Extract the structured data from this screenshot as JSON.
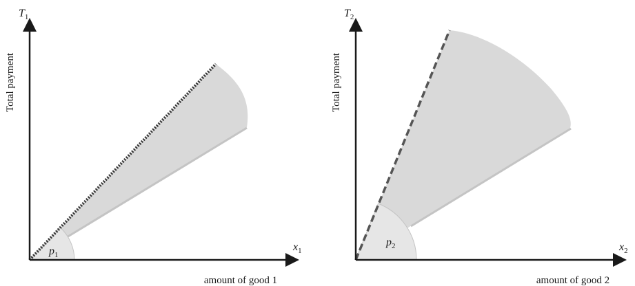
{
  "panels": [
    {
      "y_axis": {
        "symbol": "T",
        "subscript": "1",
        "title": "Total payment"
      },
      "x_axis": {
        "symbol": "x",
        "subscript": "1",
        "title": "amount of good 1"
      },
      "angle_label": {
        "symbol": "p",
        "subscript": "1"
      },
      "line_style": "dotted"
    },
    {
      "y_axis": {
        "symbol": "T",
        "subscript": "2",
        "title": "Total payment"
      },
      "x_axis": {
        "symbol": "x",
        "subscript": "2",
        "title": "amount of good 2"
      },
      "angle_label": {
        "symbol": "p",
        "subscript": "2"
      },
      "line_style": "dashed"
    }
  ],
  "colors": {
    "axis": "#1a1a1a",
    "shaded_region": "#d9d9d9",
    "lower_edge": "#c4c4c4",
    "angle_wedge": "#e6e6e6",
    "price_line": "#333333"
  }
}
